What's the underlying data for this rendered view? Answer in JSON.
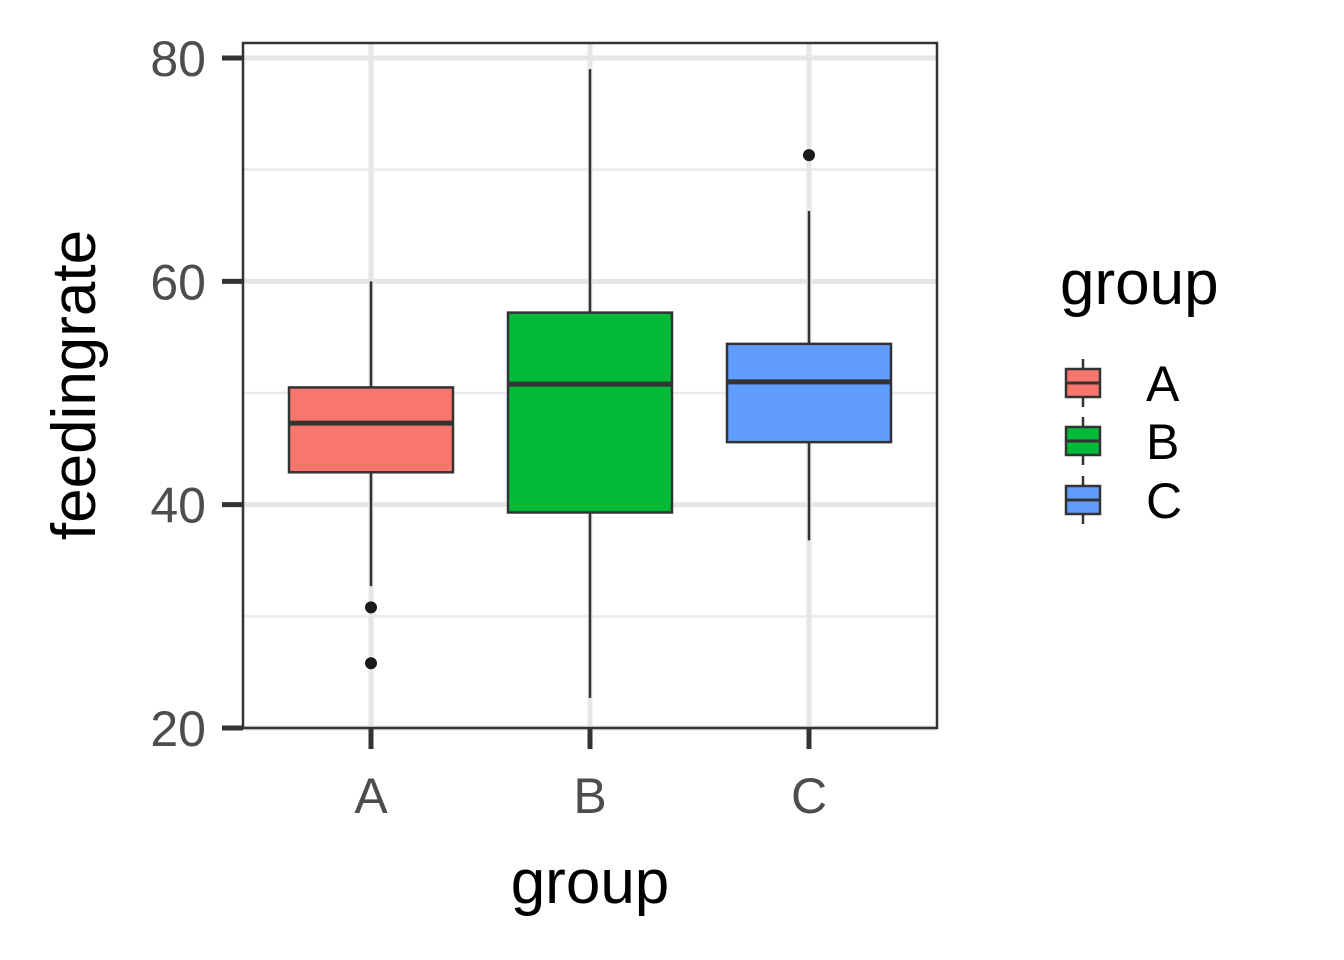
{
  "chart_data": {
    "type": "boxplot",
    "xlabel": "group",
    "ylabel": "feedingrate",
    "categories": [
      "A",
      "B",
      "C"
    ],
    "ylim": [
      20,
      80
    ],
    "yticks": [
      20,
      40,
      60,
      80
    ],
    "y_tick_labels": [
      "20",
      "40",
      "60",
      "80"
    ],
    "grid": true,
    "legend": {
      "title": "group",
      "placement": "right",
      "entries": [
        "A",
        "B",
        "C"
      ]
    },
    "colors": [
      "#F8766D",
      "#00BA38",
      "#619CFF"
    ],
    "boxes": [
      {
        "category": "A",
        "whisker_low": 32.7,
        "q1": 42.9,
        "median": 47.3,
        "q3": 50.5,
        "whisker_high": 60.0,
        "outliers": [
          30.8,
          25.8
        ]
      },
      {
        "category": "B",
        "whisker_low": 22.7,
        "q1": 39.3,
        "median": 50.8,
        "q3": 57.2,
        "whisker_high": 79.0,
        "outliers": []
      },
      {
        "category": "C",
        "whisker_low": 36.8,
        "q1": 45.6,
        "median": 51.0,
        "q3": 54.4,
        "whisker_high": 66.3,
        "outliers": [
          71.3
        ]
      }
    ]
  }
}
